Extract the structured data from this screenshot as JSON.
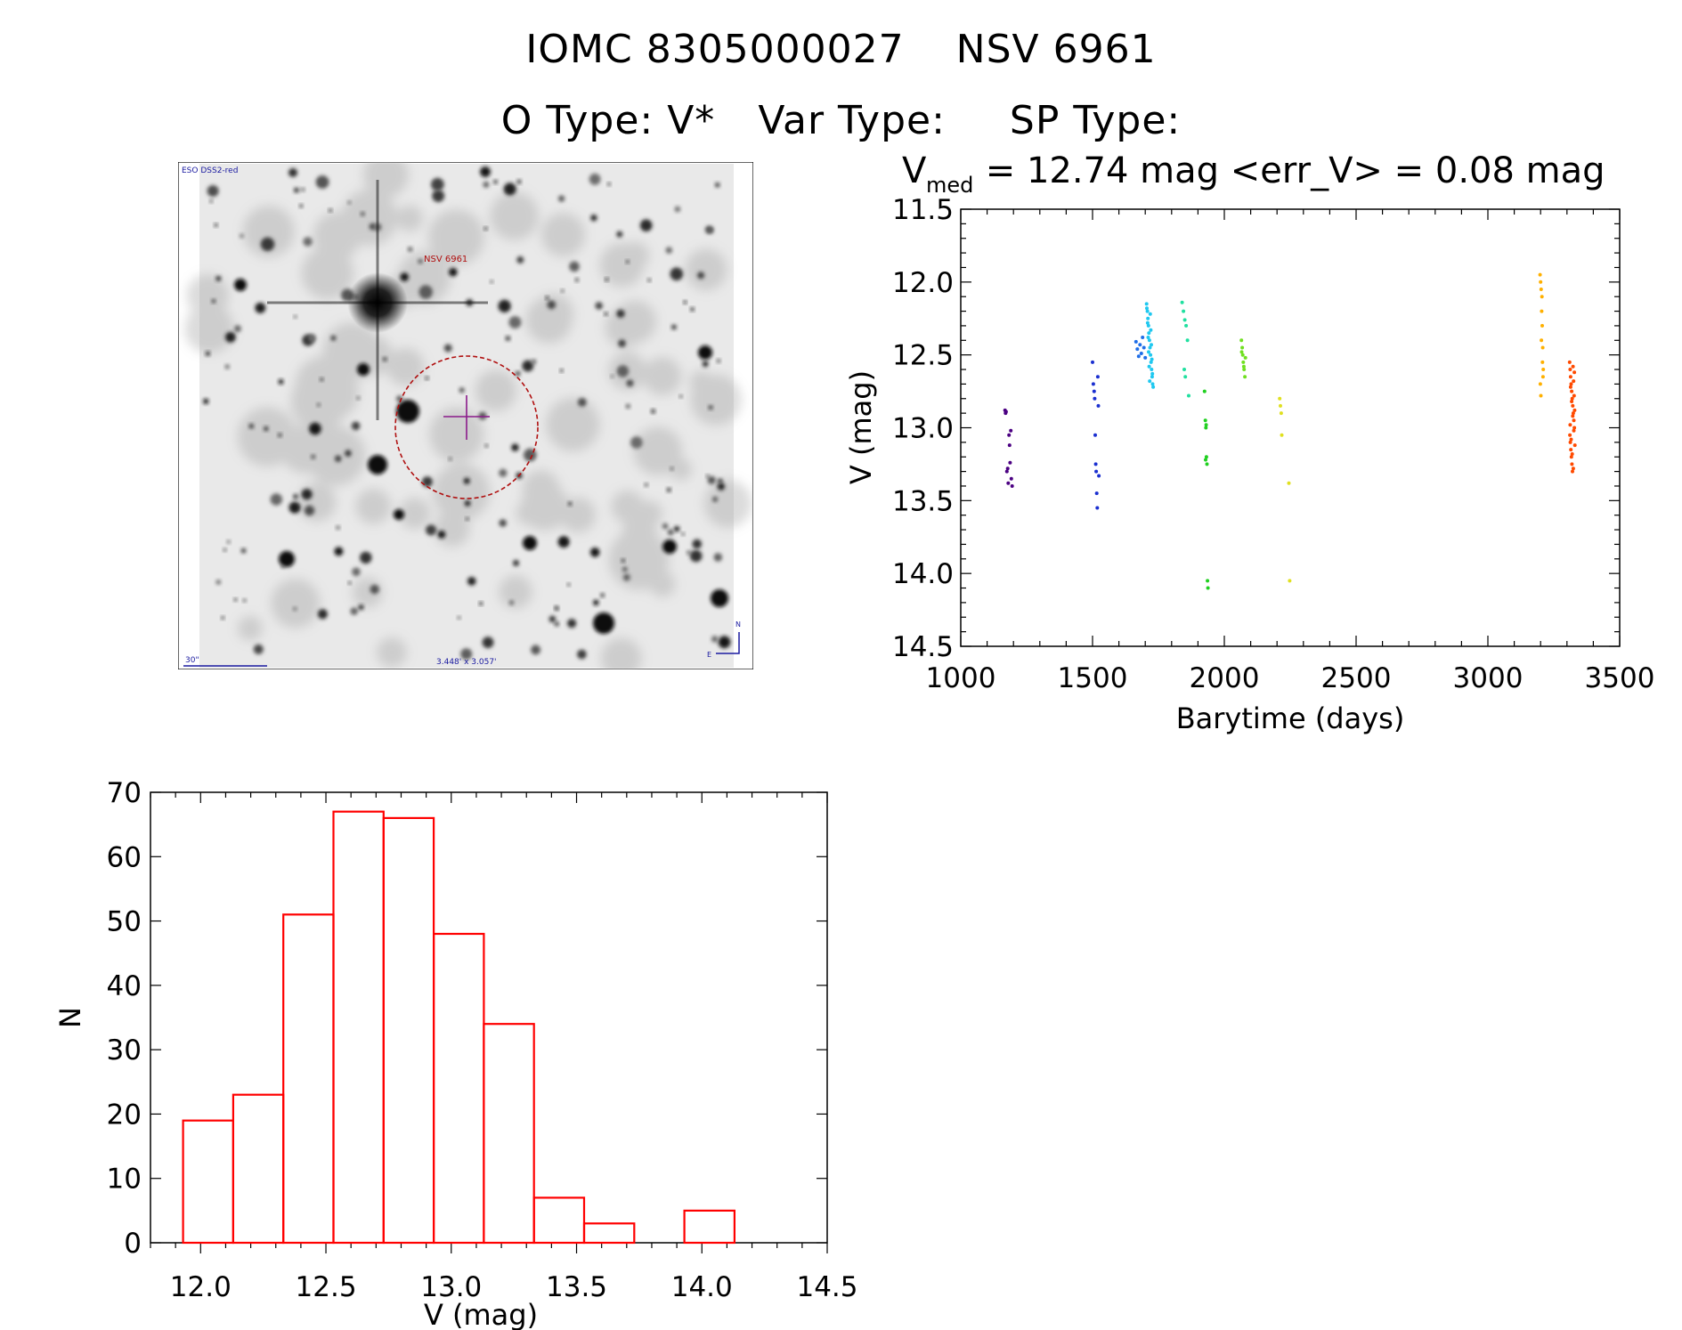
{
  "header": {
    "name": "IOMC 8305000027",
    "alias": "NSV  6961",
    "o_type": "O Type: V*",
    "var_type": "Var Type:",
    "sp_type": "SP Type:"
  },
  "image": {
    "survey_label": "ESO DSS2-red",
    "target_label": "NSV 6961",
    "scale_label": "30\"",
    "size_label": "3.448' x 3.057'",
    "north_label": "N",
    "east_label": "E",
    "target_color": "#b01010",
    "overlay_color": "#1a1aa0"
  },
  "lightcurve": {
    "vmed_symbol": "V",
    "vmed_sub": "med",
    "vmed_text": " = 12.74 mag <err_V> = 0.08 mag",
    "xlabel": "Barytime (days)",
    "ylabel": "V (mag)"
  },
  "histogram": {
    "xlabel": "V (mag)",
    "ylabel": "N",
    "color": "#ff0000"
  },
  "chart_data": [
    {
      "type": "scatter",
      "title": "V_med = 12.74 mag <err_V> = 0.08 mag",
      "xlabel": "Barytime (days)",
      "ylabel": "V (mag)",
      "xlim": [
        1000,
        3500
      ],
      "ylim": [
        14.5,
        11.5
      ],
      "y_inverted": true,
      "xticks": [
        1000,
        1500,
        2000,
        2500,
        3000,
        3500
      ],
      "yticks": [
        11.5,
        12.0,
        12.5,
        13.0,
        13.5,
        14.0,
        14.5
      ],
      "series": [
        {
          "color": "#4b0082",
          "x": [
            1168,
            1170,
            1172,
            1175,
            1178,
            1180,
            1183,
            1185,
            1187,
            1190,
            1192,
            1195
          ],
          "y": [
            12.88,
            12.9,
            12.89,
            13.3,
            13.28,
            13.38,
            13.05,
            13.12,
            13.24,
            13.02,
            13.35,
            13.4
          ]
        },
        {
          "color": "#1a2fd0",
          "x": [
            1500,
            1503,
            1506,
            1508,
            1510,
            1512,
            1514,
            1516,
            1518,
            1520,
            1522,
            1524
          ],
          "y": [
            12.55,
            12.7,
            12.75,
            12.8,
            13.05,
            13.25,
            13.3,
            13.45,
            13.55,
            12.65,
            12.85,
            13.33
          ]
        },
        {
          "color": "#1f6ee8",
          "x": [
            1665,
            1670,
            1675,
            1680,
            1685,
            1690,
            1695,
            1700
          ],
          "y": [
            12.41,
            12.46,
            12.51,
            12.43,
            12.49,
            12.38,
            12.45,
            12.52
          ]
        },
        {
          "color": "#1fc8f0",
          "x": [
            1705,
            1708,
            1710,
            1712,
            1714,
            1716,
            1718,
            1720,
            1722,
            1724,
            1726,
            1728,
            1730,
            1706,
            1709,
            1711,
            1713,
            1715,
            1717,
            1719,
            1721,
            1723,
            1725,
            1727
          ],
          "y": [
            12.15,
            12.2,
            12.25,
            12.3,
            12.35,
            12.4,
            12.45,
            12.5,
            12.55,
            12.6,
            12.65,
            12.7,
            12.72,
            12.18,
            12.28,
            12.38,
            12.48,
            12.58,
            12.68,
            12.22,
            12.33,
            12.43,
            12.53,
            12.63
          ]
        },
        {
          "color": "#20e0a0",
          "x": [
            1840,
            1845,
            1850,
            1855,
            1860,
            1865,
            1848,
            1852
          ],
          "y": [
            12.14,
            12.2,
            12.26,
            12.3,
            12.4,
            12.78,
            12.6,
            12.65
          ]
        },
        {
          "color": "#20d020",
          "x": [
            1925,
            1928,
            1930,
            1932,
            1934,
            1936,
            1938,
            1929,
            1931
          ],
          "y": [
            12.75,
            12.95,
            13.0,
            13.2,
            13.25,
            14.05,
            14.1,
            13.22,
            12.98
          ]
        },
        {
          "color": "#70e020",
          "x": [
            2065,
            2068,
            2070,
            2072,
            2075,
            2078,
            2080,
            2066,
            2074
          ],
          "y": [
            12.4,
            12.45,
            12.5,
            12.55,
            12.6,
            12.65,
            12.52,
            12.48,
            12.58
          ]
        },
        {
          "color": "#e0e020",
          "x": [
            2210,
            2213,
            2216,
            2218,
            2245,
            2248
          ],
          "y": [
            12.8,
            12.85,
            12.9,
            13.05,
            13.38,
            14.05
          ]
        },
        {
          "color": "#ffb000",
          "x": [
            3198,
            3200,
            3202,
            3204,
            3206,
            3208,
            3210,
            3199,
            3201,
            3203,
            3205,
            3207,
            3209
          ],
          "y": [
            11.95,
            12.0,
            12.05,
            12.2,
            12.3,
            12.45,
            12.6,
            12.7,
            12.78,
            12.4,
            12.1,
            12.55,
            12.65
          ]
        },
        {
          "color": "#ff4a00",
          "x": [
            3310,
            3312,
            3314,
            3316,
            3318,
            3320,
            3322,
            3324,
            3326,
            3328,
            3311,
            3313,
            3315,
            3317,
            3319,
            3321,
            3323,
            3325,
            3327,
            3329,
            3312,
            3316,
            3320,
            3324,
            3328,
            3314,
            3318,
            3322,
            3326,
            3330
          ],
          "y": [
            12.55,
            12.6,
            12.65,
            12.7,
            12.75,
            12.8,
            12.85,
            12.9,
            12.95,
            13.0,
            13.05,
            13.1,
            13.15,
            13.2,
            13.25,
            13.3,
            12.58,
            12.68,
            12.78,
            12.88,
            12.98,
            13.08,
            13.18,
            13.28,
            12.62,
            12.72,
            12.82,
            12.92,
            13.02,
            13.12
          ]
        }
      ]
    },
    {
      "type": "bar",
      "subtype": "histogram",
      "xlabel": "V (mag)",
      "ylabel": "N",
      "xlim": [
        11.8,
        14.5
      ],
      "ylim": [
        0,
        70
      ],
      "xticks": [
        12.0,
        12.5,
        13.0,
        13.5,
        14.0,
        14.5
      ],
      "yticks": [
        0,
        10,
        20,
        30,
        40,
        50,
        60,
        70
      ],
      "bin_edges": [
        11.93,
        12.13,
        12.33,
        12.53,
        12.73,
        12.93,
        13.13,
        13.33,
        13.53,
        13.73,
        13.93,
        14.13
      ],
      "values": [
        19,
        23,
        51,
        67,
        66,
        48,
        34,
        7,
        3,
        0,
        5
      ]
    }
  ]
}
